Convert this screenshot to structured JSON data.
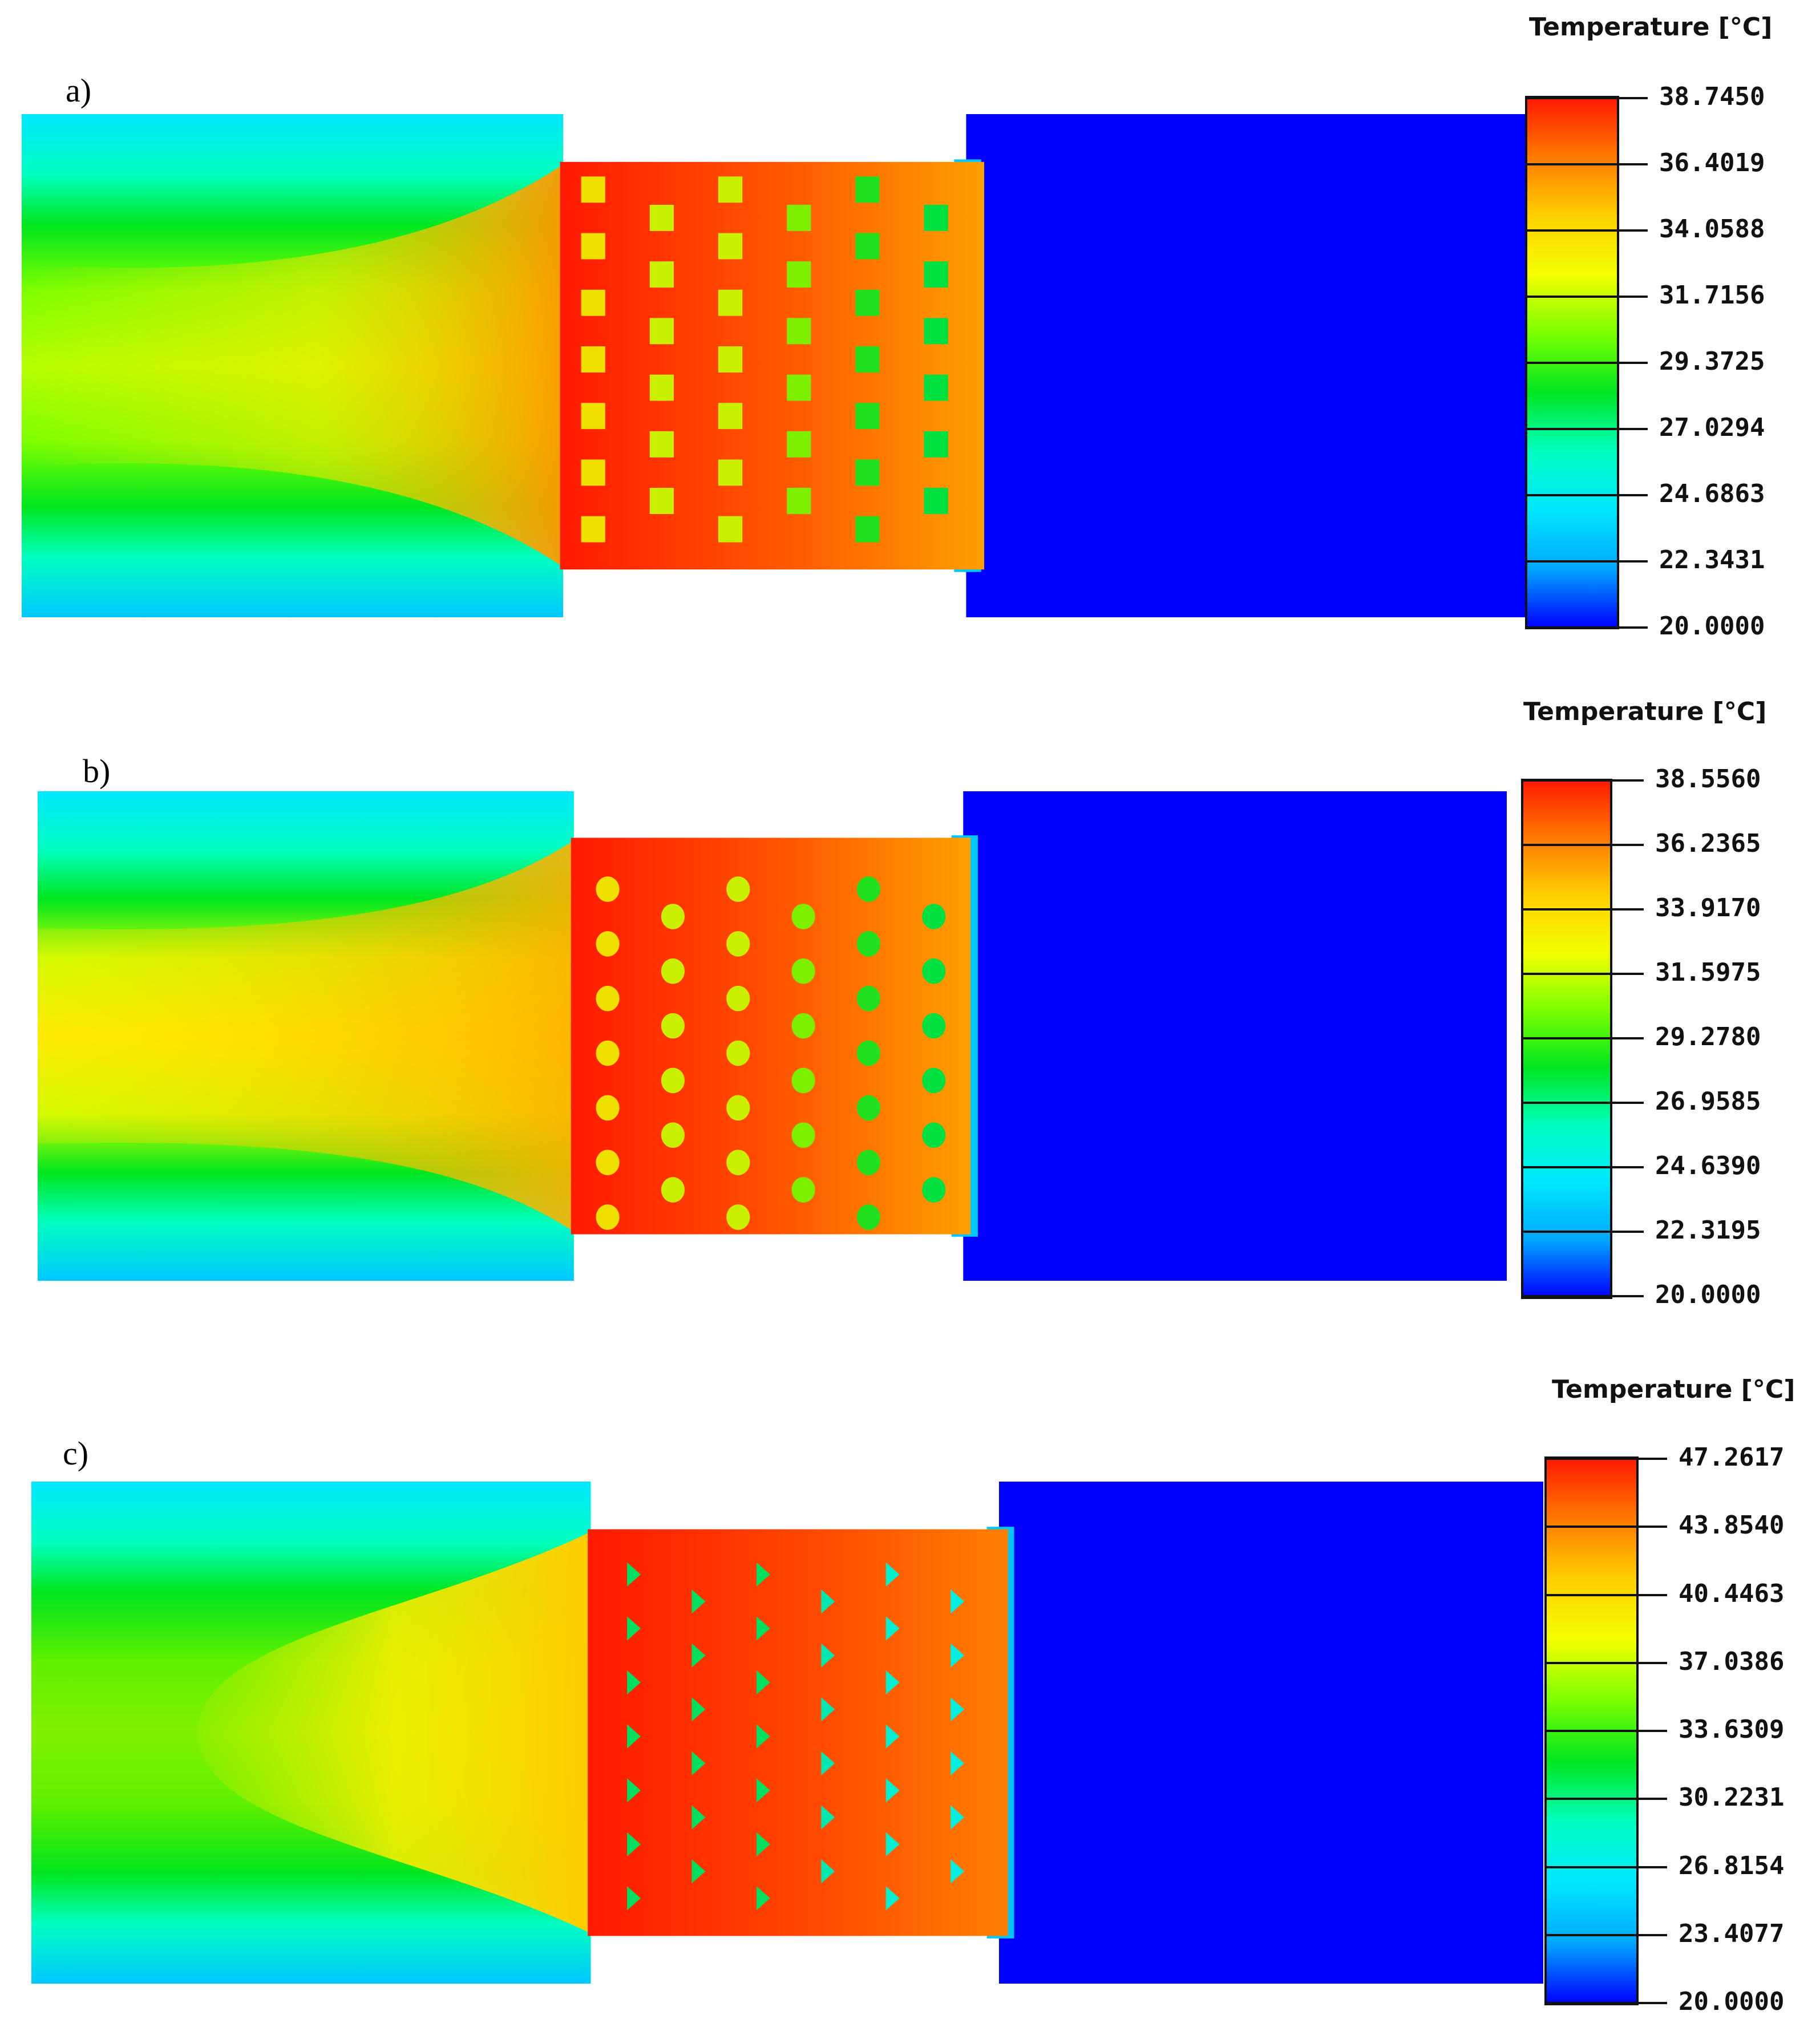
{
  "figure": {
    "panels": [
      {
        "label": "a)",
        "legend_title": "Temperature [°C]",
        "pin_shape": "square",
        "ticks": [
          "38.7450",
          "36.4019",
          "34.0588",
          "31.7156",
          "29.3725",
          "27.0294",
          "24.6863",
          "22.3431",
          "20.0000"
        ]
      },
      {
        "label": "b)",
        "legend_title": "Temperature [°C]",
        "pin_shape": "circle",
        "ticks": [
          "38.5560",
          "36.2365",
          "33.9170",
          "31.5975",
          "29.2780",
          "26.9585",
          "24.6390",
          "22.3195",
          "20.0000"
        ]
      },
      {
        "label": "c)",
        "legend_title": "Temperature [°C]",
        "pin_shape": "triangle",
        "ticks": [
          "47.2617",
          "43.8540",
          "40.4463",
          "37.0386",
          "33.6309",
          "30.2231",
          "26.8154",
          "23.4077",
          "20.0000"
        ]
      }
    ],
    "colormap": [
      "#ff1a00",
      "#ff7a00",
      "#ffd000",
      "#f4ff00",
      "#7cff00",
      "#00e61f",
      "#00ffc0",
      "#00e8ff",
      "#00a8ff",
      "#0000ff"
    ]
  }
}
